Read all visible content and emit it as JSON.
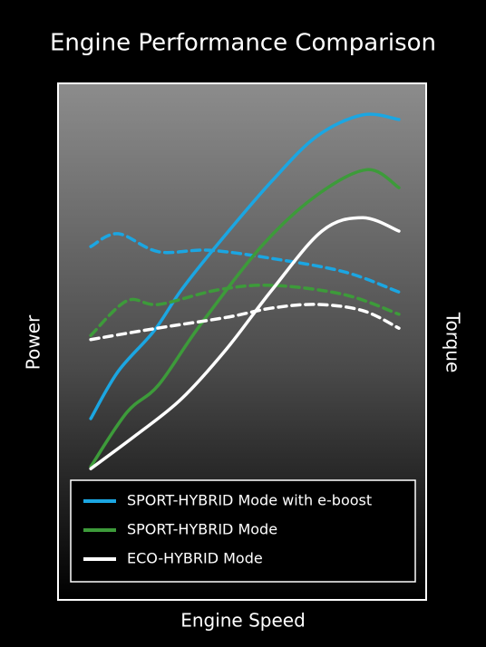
{
  "chart_data": {
    "type": "line",
    "title": "Engine Performance Comparison",
    "xlabel": "Engine Speed",
    "ylabel": "Power",
    "y2label": "Torque",
    "xlim": [
      0,
      100
    ],
    "ylim": [
      0,
      100
    ],
    "y2lim": [
      0,
      100
    ],
    "series": [
      {
        "name": "SPORT-HYBRID Mode with e-boost",
        "color": "#1ba6e2",
        "power": {
          "x": [
            8.9,
            16.3,
            26.1,
            33.5,
            43.3,
            58.1,
            70.4,
            82.8,
            92.6
          ],
          "values": [
            35.1,
            44.2,
            52.1,
            60.0,
            68.8,
            81.1,
            89.8,
            93.9,
            93.0
          ]
        },
        "torque": {
          "x": [
            8.9,
            16.3,
            27.3,
            40.9,
            58.1,
            77.8,
            92.6
          ],
          "values": [
            68.4,
            70.9,
            67.4,
            67.7,
            66.1,
            63.5,
            59.6
          ]
        }
      },
      {
        "name": "SPORT-HYBRID Mode",
        "color": "#3d9b3a",
        "power": {
          "x": [
            8.9,
            18.7,
            27.3,
            38.4,
            55.7,
            70.4,
            84.0,
            92.6
          ],
          "values": [
            25.8,
            36.3,
            41.6,
            53.0,
            68.8,
            78.4,
            83.3,
            79.8
          ]
        },
        "torque": {
          "x": [
            8.9,
            18.7,
            27.3,
            43.3,
            58.1,
            77.8,
            92.6
          ],
          "values": [
            51.2,
            57.9,
            57.2,
            60.0,
            60.9,
            59.1,
            55.3
          ]
        }
      },
      {
        "name": "ECO-HYBRID Mode",
        "color": "#ffffff",
        "power": {
          "x": [
            8.9,
            21.2,
            33.5,
            45.8,
            58.1,
            71.7,
            82.8,
            92.6
          ],
          "values": [
            25.4,
            31.9,
            38.9,
            48.6,
            60.0,
            71.4,
            74.0,
            71.4
          ]
        },
        "torque": {
          "x": [
            8.9,
            26.1,
            45.8,
            58.1,
            70.4,
            82.8,
            92.6
          ],
          "values": [
            50.4,
            52.5,
            54.7,
            56.5,
            57.2,
            56.0,
            52.6
          ]
        }
      }
    ]
  }
}
